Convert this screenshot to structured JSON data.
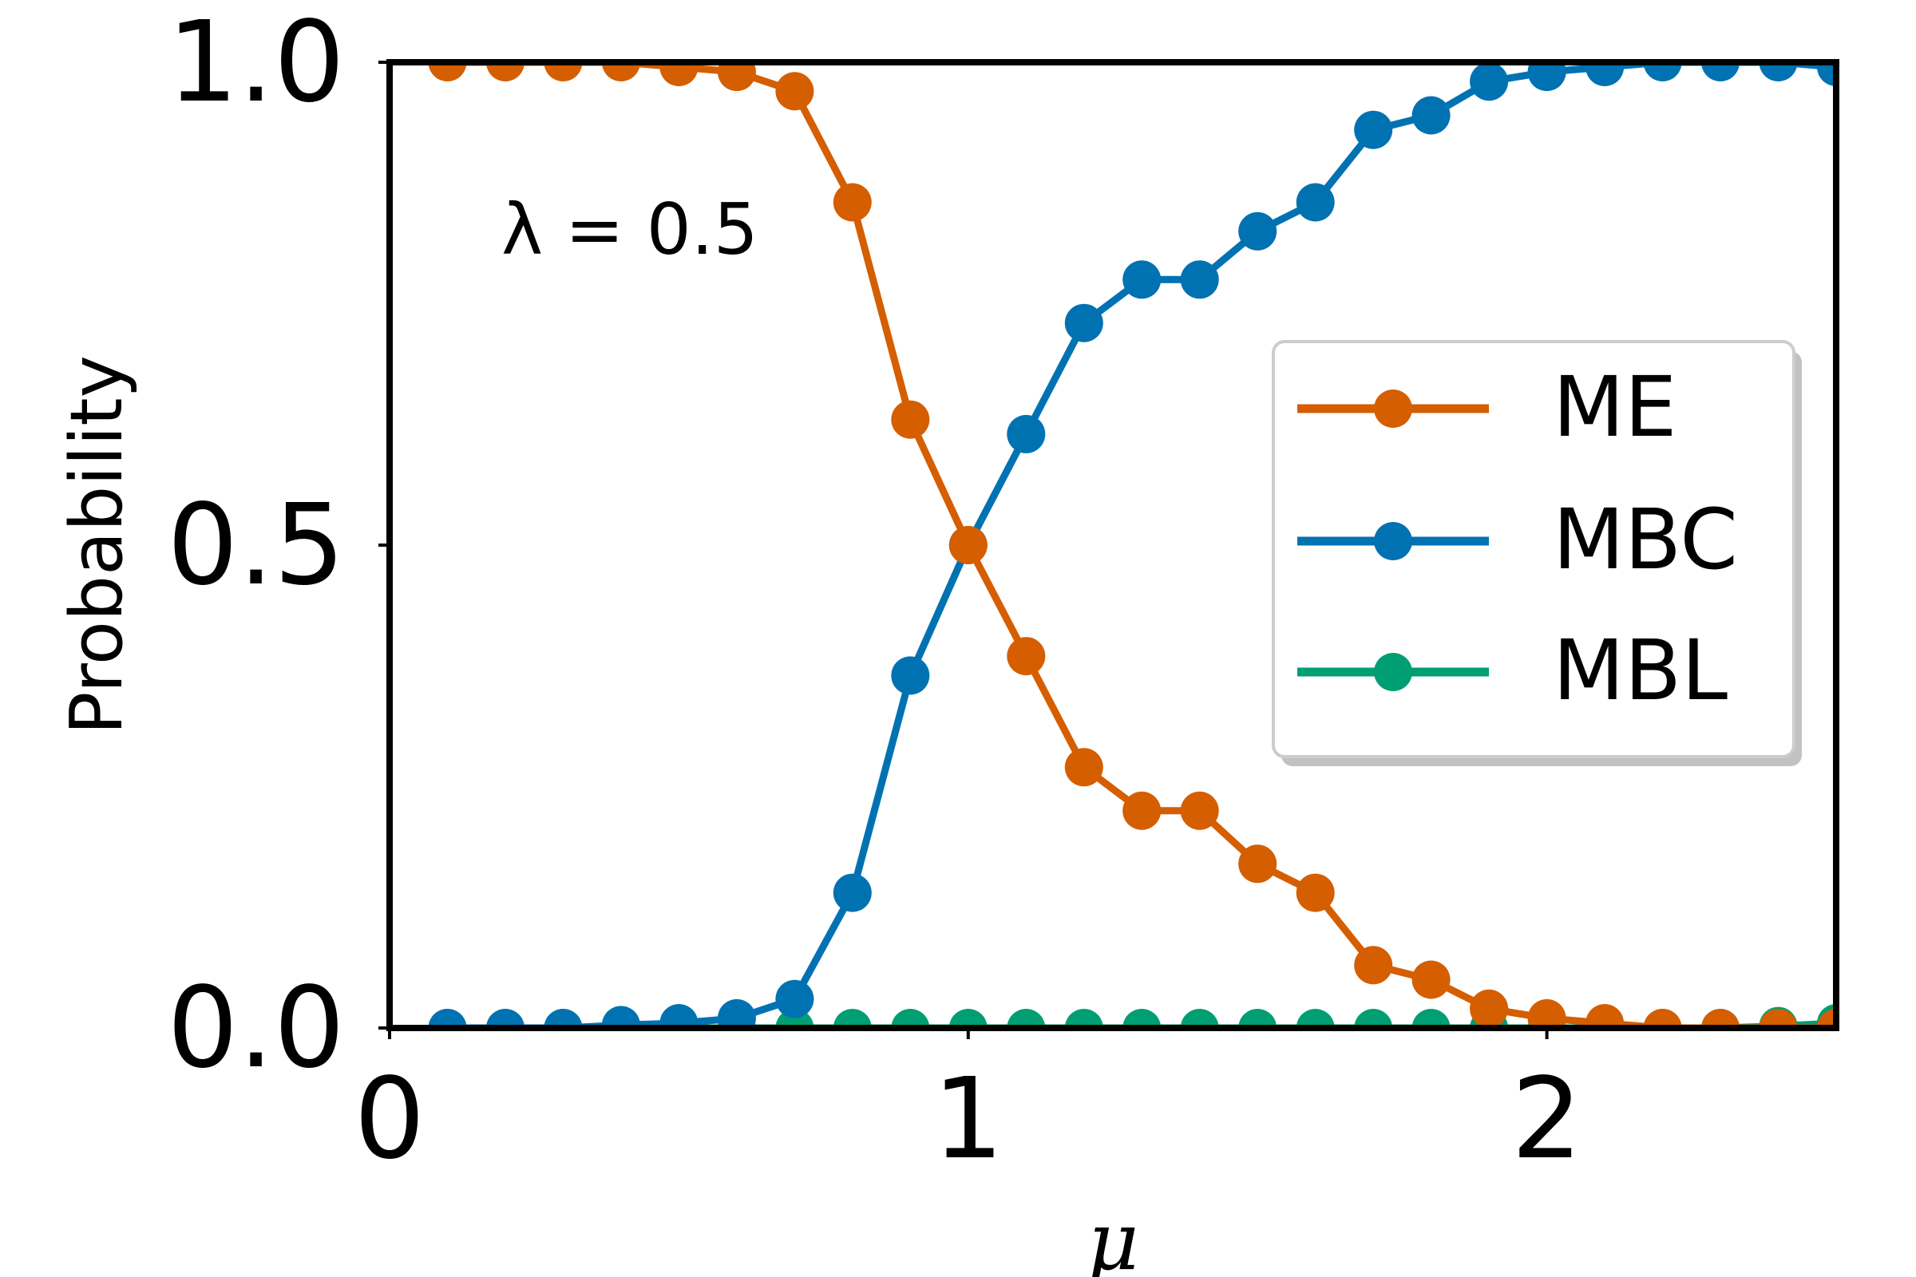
{
  "chart_data": {
    "type": "line",
    "xlabel": "μ",
    "ylabel": "Probability",
    "annotation": "λ = 0.5",
    "xlim": [
      0,
      2.5
    ],
    "ylim": [
      0,
      1
    ],
    "xticks": [
      0,
      1,
      2
    ],
    "xtick_labels": [
      "0",
      "1",
      "2"
    ],
    "yticks": [
      0,
      0.5,
      1
    ],
    "ytick_labels": [
      "0.0",
      "0.5",
      "1.0"
    ],
    "grid": false,
    "legend_position": "center-right",
    "x": [
      0.1,
      0.2,
      0.3,
      0.4,
      0.5,
      0.6,
      0.7,
      0.8,
      0.9,
      1.0,
      1.1,
      1.2,
      1.3,
      1.4,
      1.5,
      1.6,
      1.7,
      1.8,
      1.9,
      2.0,
      2.1,
      2.2,
      2.3,
      2.4,
      2.5
    ],
    "series": [
      {
        "name": "ME",
        "color": "#d55e00",
        "values": [
          1.0,
          1.0,
          1.0,
          1.0,
          0.995,
          0.99,
          0.97,
          0.855,
          0.63,
          0.5,
          0.385,
          0.27,
          0.225,
          0.225,
          0.17,
          0.14,
          0.065,
          0.05,
          0.02,
          0.01,
          0.005,
          0.0,
          0.0,
          0.0,
          0.0
        ]
      },
      {
        "name": "MBC",
        "color": "#0072b2",
        "values": [
          0.0,
          0.0,
          0.0,
          0.003,
          0.005,
          0.01,
          0.03,
          0.14,
          0.365,
          0.5,
          0.615,
          0.73,
          0.775,
          0.775,
          0.825,
          0.855,
          0.93,
          0.945,
          0.98,
          0.99,
          0.995,
          1.0,
          1.0,
          1.0,
          0.995
        ]
      },
      {
        "name": "MBL",
        "color": "#009e73",
        "values": [
          0.0,
          0.0,
          0.0,
          0.0,
          0.0,
          0.0,
          0.0,
          0.0,
          0.0,
          0.0,
          0.0,
          0.0,
          0.0,
          0.0,
          0.0,
          0.0,
          0.0,
          0.0,
          0.0,
          0.0,
          0.0,
          0.0,
          0.0,
          0.002,
          0.005
        ]
      }
    ]
  }
}
